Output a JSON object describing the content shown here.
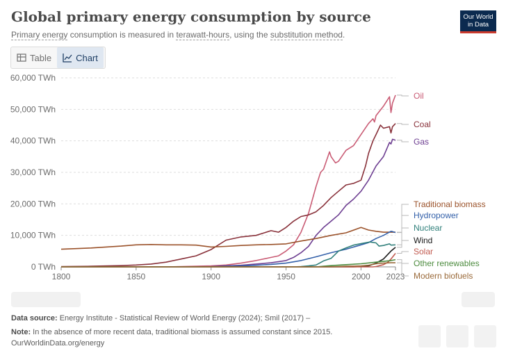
{
  "title": "Global primary energy consumption by source",
  "subtitle": {
    "p1": "Primary energy",
    "p2": " consumption is measured in ",
    "p3": "terawatt-hours",
    "p4": ", using the ",
    "p5": "substitution method",
    "p6": "."
  },
  "logo": {
    "line1": "Our World",
    "line2": "in Data"
  },
  "tabs": [
    {
      "label": "Table",
      "icon": "table-icon"
    },
    {
      "label": "Chart",
      "icon": "line-chart-icon"
    }
  ],
  "footer": {
    "source_label": "Data source:",
    "source_text": " Energy Institute - Statistical Review of World Energy (2024); Smil (2017) –",
    "note_label": "Note:",
    "note_text": " In the absence of more recent data, traditional biomass is assumed constant since 2015.",
    "url": "OurWorldinData.org/energy"
  },
  "chart_data": {
    "type": "line",
    "title": "Global primary energy consumption by source",
    "xlim": [
      1800,
      2023
    ],
    "ylim": [
      0,
      60000
    ],
    "grid": true,
    "y_ticks": [
      0,
      10000,
      20000,
      30000,
      40000,
      50000,
      60000
    ],
    "y_tick_labels": [
      "0 TWh",
      "10,000 TWh",
      "20,000 TWh",
      "30,000 TWh",
      "40,000 TWh",
      "50,000 TWh",
      "60,000 TWh"
    ],
    "x_tick_labels": [
      "1800",
      "1850",
      "1900",
      "1950",
      "2000",
      "2023"
    ],
    "x_ticks": [
      1800,
      1850,
      1900,
      1950,
      2000,
      2023
    ],
    "series": [
      {
        "name": "Oil",
        "color": "#c95b74",
        "points": [
          [
            1800,
            0
          ],
          [
            1870,
            0
          ],
          [
            1880,
            100
          ],
          [
            1890,
            200
          ],
          [
            1900,
            300
          ],
          [
            1910,
            600
          ],
          [
            1920,
            1200
          ],
          [
            1930,
            2000
          ],
          [
            1940,
            3000
          ],
          [
            1945,
            3500
          ],
          [
            1950,
            5000
          ],
          [
            1955,
            7000
          ],
          [
            1960,
            11000
          ],
          [
            1965,
            17000
          ],
          [
            1970,
            25500
          ],
          [
            1973,
            30000
          ],
          [
            1975,
            31000
          ],
          [
            1979,
            36500
          ],
          [
            1980,
            35000
          ],
          [
            1983,
            33000
          ],
          [
            1985,
            33500
          ],
          [
            1990,
            37000
          ],
          [
            1995,
            38500
          ],
          [
            2000,
            42000
          ],
          [
            2005,
            45500
          ],
          [
            2008,
            47000
          ],
          [
            2009,
            46000
          ],
          [
            2010,
            48000
          ],
          [
            2015,
            51000
          ],
          [
            2019,
            54000
          ],
          [
            2020,
            49000
          ],
          [
            2021,
            52000
          ],
          [
            2023,
            54500
          ]
        ]
      },
      {
        "name": "Coal",
        "color": "#883039",
        "points": [
          [
            1800,
            100
          ],
          [
            1820,
            200
          ],
          [
            1840,
            400
          ],
          [
            1850,
            600
          ],
          [
            1860,
            900
          ],
          [
            1870,
            1500
          ],
          [
            1880,
            2500
          ],
          [
            1890,
            3500
          ],
          [
            1900,
            5500
          ],
          [
            1910,
            8500
          ],
          [
            1920,
            9500
          ],
          [
            1930,
            10000
          ],
          [
            1940,
            11500
          ],
          [
            1945,
            11000
          ],
          [
            1950,
            12500
          ],
          [
            1955,
            14500
          ],
          [
            1960,
            16000
          ],
          [
            1965,
            16500
          ],
          [
            1970,
            17500
          ],
          [
            1975,
            19500
          ],
          [
            1980,
            22000
          ],
          [
            1985,
            24000
          ],
          [
            1990,
            26000
          ],
          [
            1995,
            26500
          ],
          [
            2000,
            27500
          ],
          [
            2003,
            32000
          ],
          [
            2005,
            36000
          ],
          [
            2008,
            40000
          ],
          [
            2010,
            42000
          ],
          [
            2013,
            45000
          ],
          [
            2015,
            44000
          ],
          [
            2019,
            44500
          ],
          [
            2020,
            42500
          ],
          [
            2021,
            44500
          ],
          [
            2023,
            45500
          ]
        ]
      },
      {
        "name": "Gas",
        "color": "#6d3e91",
        "points": [
          [
            1800,
            0
          ],
          [
            1880,
            0
          ],
          [
            1890,
            50
          ],
          [
            1900,
            100
          ],
          [
            1910,
            300
          ],
          [
            1920,
            500
          ],
          [
            1930,
            900
          ],
          [
            1940,
            1300
          ],
          [
            1950,
            2000
          ],
          [
            1955,
            3000
          ],
          [
            1960,
            4500
          ],
          [
            1965,
            6500
          ],
          [
            1970,
            10000
          ],
          [
            1975,
            12500
          ],
          [
            1980,
            14500
          ],
          [
            1985,
            16500
          ],
          [
            1990,
            19500
          ],
          [
            1995,
            21500
          ],
          [
            2000,
            24000
          ],
          [
            2005,
            27500
          ],
          [
            2010,
            32000
          ],
          [
            2015,
            35000
          ],
          [
            2019,
            39500
          ],
          [
            2020,
            39000
          ],
          [
            2021,
            40500
          ],
          [
            2023,
            40200
          ]
        ]
      },
      {
        "name": "Traditional biomass",
        "color": "#9a5129",
        "points": [
          [
            1800,
            5600
          ],
          [
            1810,
            5800
          ],
          [
            1820,
            6000
          ],
          [
            1830,
            6300
          ],
          [
            1840,
            6600
          ],
          [
            1850,
            7000
          ],
          [
            1860,
            7100
          ],
          [
            1870,
            7000
          ],
          [
            1880,
            7000
          ],
          [
            1890,
            6900
          ],
          [
            1900,
            6300
          ],
          [
            1910,
            6500
          ],
          [
            1920,
            6800
          ],
          [
            1930,
            7000
          ],
          [
            1940,
            7100
          ],
          [
            1950,
            7300
          ],
          [
            1960,
            8200
          ],
          [
            1970,
            9000
          ],
          [
            1980,
            10000
          ],
          [
            1990,
            10800
          ],
          [
            2000,
            12500
          ],
          [
            2005,
            11700
          ],
          [
            2010,
            11300
          ],
          [
            2015,
            11000
          ],
          [
            2023,
            11000
          ]
        ]
      },
      {
        "name": "Hydropower",
        "color": "#3360a9",
        "points": [
          [
            1800,
            0
          ],
          [
            1890,
            0
          ],
          [
            1900,
            50
          ],
          [
            1920,
            300
          ],
          [
            1930,
            500
          ],
          [
            1940,
            800
          ],
          [
            1950,
            1200
          ],
          [
            1960,
            2000
          ],
          [
            1970,
            3200
          ],
          [
            1980,
            4500
          ],
          [
            1990,
            5600
          ],
          [
            2000,
            7000
          ],
          [
            2005,
            7700
          ],
          [
            2010,
            9000
          ],
          [
            2015,
            10000
          ],
          [
            2020,
            11300
          ],
          [
            2021,
            11200
          ],
          [
            2023,
            10900
          ]
        ]
      },
      {
        "name": "Nuclear",
        "color": "#2f7f7a",
        "points": [
          [
            1800,
            0
          ],
          [
            1955,
            0
          ],
          [
            1960,
            100
          ],
          [
            1965,
            300
          ],
          [
            1970,
            600
          ],
          [
            1975,
            1900
          ],
          [
            1980,
            2700
          ],
          [
            1985,
            5000
          ],
          [
            1990,
            6000
          ],
          [
            1995,
            6900
          ],
          [
            2000,
            7400
          ],
          [
            2005,
            7800
          ],
          [
            2006,
            7900
          ],
          [
            2010,
            7600
          ],
          [
            2012,
            6600
          ],
          [
            2015,
            6800
          ],
          [
            2019,
            7300
          ],
          [
            2020,
            6900
          ],
          [
            2023,
            7000
          ]
        ]
      },
      {
        "name": "Wind",
        "color": "#1a1a1a",
        "points": [
          [
            1800,
            0
          ],
          [
            1995,
            0
          ],
          [
            2000,
            100
          ],
          [
            2005,
            300
          ],
          [
            2010,
            1200
          ],
          [
            2015,
            2500
          ],
          [
            2020,
            5000
          ],
          [
            2023,
            6200
          ]
        ]
      },
      {
        "name": "Solar",
        "color": "#c15a4f",
        "points": [
          [
            1800,
            0
          ],
          [
            2008,
            0
          ],
          [
            2010,
            100
          ],
          [
            2015,
            700
          ],
          [
            2018,
            1500
          ],
          [
            2020,
            2500
          ],
          [
            2023,
            4300
          ]
        ]
      },
      {
        "name": "Other renewables",
        "color": "#4c8b3e",
        "points": [
          [
            1800,
            0
          ],
          [
            1970,
            0
          ],
          [
            1975,
            200
          ],
          [
            1980,
            400
          ],
          [
            1990,
            700
          ],
          [
            2000,
            1000
          ],
          [
            2010,
            1500
          ],
          [
            2020,
            2000
          ],
          [
            2023,
            2300
          ]
        ]
      },
      {
        "name": "Modern biofuels",
        "color": "#9a6a3a",
        "points": [
          [
            1800,
            0
          ],
          [
            1980,
            0
          ],
          [
            1990,
            200
          ],
          [
            2000,
            300
          ],
          [
            2005,
            500
          ],
          [
            2010,
            1000
          ],
          [
            2015,
            1200
          ],
          [
            2020,
            1300
          ],
          [
            2023,
            1300
          ]
        ]
      }
    ]
  }
}
